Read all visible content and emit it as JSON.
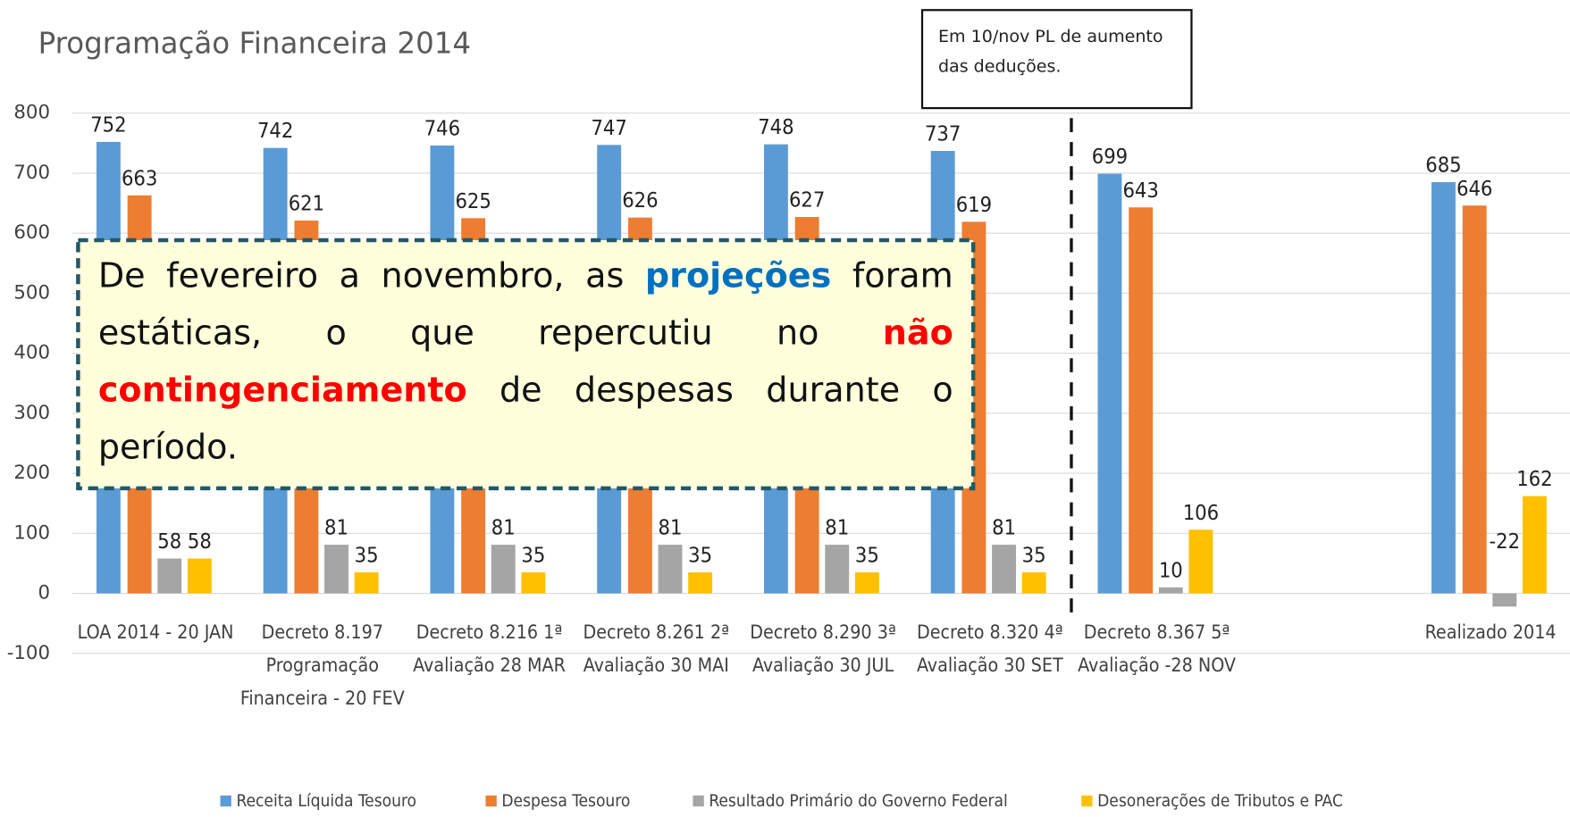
{
  "chart_data": {
    "type": "bar",
    "title": "Programação Financeira 2014",
    "categories": [
      "LOA 2014 - 20 JAN",
      "Decreto 8.197 Programação Financeira - 20 FEV",
      "Decreto 8.216 1ª Avaliação 28 MAR",
      "Decreto 8.261 2ª Avaliação 30 MAI",
      "Decreto 8.290 3ª Avaliação 30 JUL",
      "Decreto 8.320 4ª Avaliação 30 SET",
      "Decreto 8.367 5ª Avaliação -28 NOV",
      null,
      "Realizado 2014"
    ],
    "series": [
      {
        "name": "Receita Líquida Tesouro",
        "color": "#5b9bd5",
        "values": [
          752,
          742,
          746,
          747,
          748,
          737,
          699,
          null,
          685
        ]
      },
      {
        "name": "Despesa  Tesouro",
        "color": "#ed7d31",
        "values": [
          663,
          621,
          625,
          626,
          627,
          619,
          643,
          null,
          646
        ]
      },
      {
        "name": "Resultado Primário do Governo Federal",
        "color": "#a5a5a5",
        "values": [
          58,
          81,
          81,
          81,
          81,
          81,
          10,
          null,
          -22
        ]
      },
      {
        "name": "Desonerações de Tributos e PAC",
        "color": "#ffc000",
        "values": [
          58,
          35,
          35,
          35,
          35,
          35,
          106,
          null,
          162
        ]
      }
    ],
    "ylim": [
      -100,
      800
    ],
    "yticks": [
      -100,
      0,
      100,
      200,
      300,
      400,
      500,
      600,
      700,
      800
    ],
    "grid": true,
    "legend": "bottom",
    "annotations": {
      "note": "Em 10/nov PL de aumento das deduções.",
      "box": [
        "De fevereiro a novembro, as ",
        "projeções",
        " foram estáticas, o que repercutiu no ",
        "não contingenciamento",
        " de despesas durante o período."
      ]
    }
  }
}
